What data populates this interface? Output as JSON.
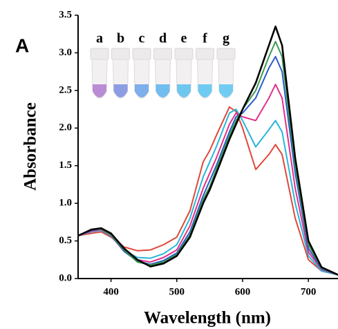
{
  "chart_data": {
    "type": "line",
    "panel_label": "A",
    "x_label": "Wavelength (nm)",
    "y_label": "Absorbance",
    "x": [
      350,
      370,
      385,
      400,
      420,
      440,
      460,
      480,
      500,
      520,
      540,
      550,
      560,
      580,
      590,
      600,
      620,
      640,
      650,
      660,
      680,
      700,
      720,
      745
    ],
    "series": [
      {
        "color": "#e0473a",
        "values": [
          0.57,
          0.6,
          0.62,
          0.55,
          0.42,
          0.37,
          0.38,
          0.45,
          0.55,
          0.9,
          1.55,
          1.7,
          1.9,
          2.28,
          2.22,
          2.0,
          1.45,
          1.65,
          1.78,
          1.65,
          0.8,
          0.25,
          0.1,
          0.05
        ]
      },
      {
        "color": "#27b6d9",
        "values": [
          0.57,
          0.62,
          0.64,
          0.56,
          0.37,
          0.28,
          0.27,
          0.33,
          0.45,
          0.8,
          1.35,
          1.55,
          1.75,
          2.2,
          2.25,
          2.1,
          1.75,
          1.98,
          2.1,
          1.95,
          1.0,
          0.3,
          0.1,
          0.05
        ]
      },
      {
        "color": "#e0308a",
        "values": [
          0.57,
          0.63,
          0.65,
          0.57,
          0.36,
          0.25,
          0.22,
          0.28,
          0.38,
          0.7,
          1.2,
          1.4,
          1.6,
          2.05,
          2.2,
          2.15,
          2.1,
          2.4,
          2.58,
          2.4,
          1.2,
          0.35,
          0.12,
          0.05
        ]
      },
      {
        "color": "#2a5cc8",
        "values": [
          0.57,
          0.64,
          0.66,
          0.58,
          0.36,
          0.23,
          0.19,
          0.24,
          0.34,
          0.62,
          1.1,
          1.3,
          1.5,
          1.95,
          2.15,
          2.2,
          2.4,
          2.8,
          2.95,
          2.75,
          1.4,
          0.4,
          0.13,
          0.05
        ]
      },
      {
        "color": "#3a9a50",
        "values": [
          0.57,
          0.65,
          0.66,
          0.58,
          0.38,
          0.22,
          0.18,
          0.22,
          0.32,
          0.58,
          1.05,
          1.22,
          1.45,
          1.9,
          2.1,
          2.25,
          2.5,
          2.95,
          3.15,
          2.95,
          1.5,
          0.45,
          0.14,
          0.05
        ]
      },
      {
        "color": "#000000",
        "values": [
          0.57,
          0.65,
          0.67,
          0.6,
          0.4,
          0.25,
          0.16,
          0.2,
          0.3,
          0.55,
          1.0,
          1.18,
          1.4,
          1.85,
          2.05,
          2.25,
          2.6,
          3.1,
          3.35,
          3.1,
          1.6,
          0.5,
          0.15,
          0.05
        ]
      }
    ],
    "xlim": [
      350,
      745
    ],
    "ylim": [
      0,
      3.5
    ],
    "xticks": [
      400,
      500,
      600,
      700
    ],
    "yticks": [
      {
        "value": 0,
        "label": "0.0"
      },
      0.5,
      {
        "value": 1,
        "label": "1.0"
      },
      1.5,
      {
        "value": 2,
        "label": "2.0"
      },
      2.5,
      {
        "value": 3,
        "label": "3.0"
      },
      3.5
    ],
    "inset": {
      "labels": [
        "a",
        "b",
        "c",
        "d",
        "e",
        "f",
        "g"
      ],
      "colors": [
        "#b07ad0",
        "#7a8ee0",
        "#6aa2ea",
        "#5ab4ee",
        "#58c0f0",
        "#58c4f2",
        "#5ac6f2"
      ]
    }
  }
}
